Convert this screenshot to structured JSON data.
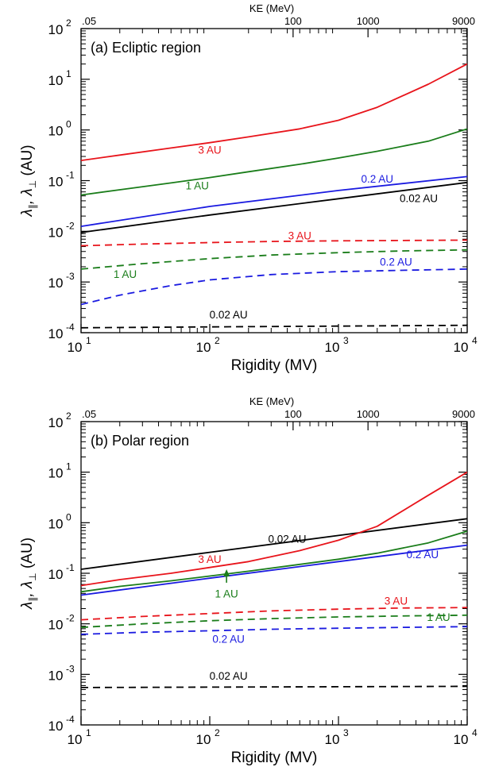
{
  "chart_data": [
    {
      "type": "line",
      "title": "(a) Ecliptic region",
      "xlabel": "Rigidity (MV)",
      "ylabel_parts": [
        "λ",
        "∥",
        ", λ",
        "⊥",
        " (AU)"
      ],
      "top_axis_label": "KE (MeV)",
      "xscale": "log",
      "yscale": "log",
      "xlim": [
        10,
        10000
      ],
      "ylim": [
        0.0001,
        100
      ],
      "x_ticks": [
        {
          "value": 10,
          "base": "10",
          "exp": "1"
        },
        {
          "value": 100,
          "base": "10",
          "exp": "2"
        },
        {
          "value": 1000,
          "base": "10",
          "exp": "3"
        },
        {
          "value": 10000,
          "base": "10",
          "exp": "4"
        }
      ],
      "y_ticks": [
        {
          "value": 0.0001,
          "base": "10",
          "exp": "-4"
        },
        {
          "value": 0.001,
          "base": "10",
          "exp": "-3"
        },
        {
          "value": 0.01,
          "base": "10",
          "exp": "-2"
        },
        {
          "value": 0.1,
          "base": "10",
          "exp": "-1"
        },
        {
          "value": 1,
          "base": "10",
          "exp": "0"
        },
        {
          "value": 10,
          "base": "10",
          "exp": "1"
        },
        {
          "value": 100,
          "base": "10",
          "exp": "2"
        }
      ],
      "top_ticks": [
        {
          "label": ".05",
          "rigidity": 10
        },
        {
          "label": "100",
          "rigidity": 444
        },
        {
          "label": "1000",
          "rigidity": 1696
        },
        {
          "label": "9000",
          "rigidity": 9930
        }
      ],
      "series": [
        {
          "name": "3 AU",
          "kind": "parallel",
          "color": "#e8141b",
          "dash": false,
          "x": [
            10,
            20,
            50,
            100,
            200,
            500,
            1000,
            2000,
            5000,
            10000
          ],
          "y": [
            0.25,
            0.32,
            0.44,
            0.56,
            0.73,
            1.05,
            1.55,
            2.8,
            8.0,
            20
          ]
        },
        {
          "name": "1 AU",
          "kind": "parallel",
          "color": "#1a7d1a",
          "dash": false,
          "x": [
            10,
            20,
            50,
            100,
            200,
            500,
            1000,
            2000,
            5000,
            10000
          ],
          "y": [
            0.052,
            0.066,
            0.09,
            0.115,
            0.15,
            0.21,
            0.28,
            0.38,
            0.6,
            1.05
          ]
        },
        {
          "name": "0.2 AU",
          "kind": "parallel",
          "color": "#1a1ae0",
          "dash": false,
          "x": [
            10,
            100,
            1000,
            10000
          ],
          "y": [
            0.0125,
            0.031,
            0.064,
            0.12
          ]
        },
        {
          "name": "0.02 AU",
          "kind": "parallel",
          "color": "#000000",
          "dash": false,
          "x": [
            10,
            100,
            1000,
            10000
          ],
          "y": [
            0.0095,
            0.021,
            0.044,
            0.092
          ]
        },
        {
          "name": "3 AU",
          "kind": "perpendicular",
          "color": "#e8141b",
          "dash": true,
          "x": [
            10,
            30,
            100,
            300,
            1000,
            3000,
            10000
          ],
          "y": [
            0.0052,
            0.0056,
            0.006,
            0.0063,
            0.0065,
            0.0066,
            0.0067
          ]
        },
        {
          "name": "1 AU",
          "kind": "perpendicular",
          "color": "#1a7d1a",
          "dash": true,
          "x": [
            10,
            30,
            100,
            300,
            1000,
            3000,
            10000
          ],
          "y": [
            0.0018,
            0.0023,
            0.0029,
            0.0034,
            0.0038,
            0.0041,
            0.0043
          ]
        },
        {
          "name": "0.2 AU",
          "kind": "perpendicular",
          "color": "#1a1ae0",
          "dash": true,
          "x": [
            10,
            20,
            50,
            100,
            300,
            1000,
            3000,
            10000
          ],
          "y": [
            0.00036,
            0.00055,
            0.00085,
            0.0011,
            0.0014,
            0.0016,
            0.0017,
            0.0018
          ]
        },
        {
          "name": "0.02 AU",
          "kind": "perpendicular",
          "color": "#000000",
          "dash": true,
          "x": [
            10,
            100,
            1000,
            10000
          ],
          "y": [
            0.000125,
            0.00013,
            0.000135,
            0.00014
          ]
        }
      ],
      "labels": [
        {
          "text": "3 AU",
          "color": "#e8141b",
          "x": 100,
          "y": 0.34
        },
        {
          "text": "1 AU",
          "color": "#1a7d1a",
          "x": 80,
          "y": 0.067
        },
        {
          "text": "0.2 AU",
          "color": "#1a1ae0",
          "x": 2000,
          "y": 0.092
        },
        {
          "text": "0.02 AU",
          "color": "#000000",
          "x": 4200,
          "y": 0.038
        },
        {
          "text": "3 AU",
          "color": "#e8141b",
          "x": 500,
          "y": 0.0069
        },
        {
          "text": "1 AU",
          "color": "#1a7d1a",
          "x": 22,
          "y": 0.0012
        },
        {
          "text": "0.2 AU",
          "color": "#1a1ae0",
          "x": 2800,
          "y": 0.0021
        },
        {
          "text": "0.02 AU",
          "color": "#000000",
          "x": 140,
          "y": 0.00019
        }
      ]
    },
    {
      "type": "line",
      "title": "(b) Polar region",
      "xlabel": "Rigidity (MV)",
      "ylabel_parts": [
        "λ",
        "∥",
        ", λ",
        "⊥",
        " (AU)"
      ],
      "top_axis_label": "KE (MeV)",
      "xscale": "log",
      "yscale": "log",
      "xlim": [
        10,
        10000
      ],
      "ylim": [
        0.0001,
        100
      ],
      "x_ticks": [
        {
          "value": 10,
          "base": "10",
          "exp": "1"
        },
        {
          "value": 100,
          "base": "10",
          "exp": "2"
        },
        {
          "value": 1000,
          "base": "10",
          "exp": "3"
        },
        {
          "value": 10000,
          "base": "10",
          "exp": "4"
        }
      ],
      "y_ticks": [
        {
          "value": 0.0001,
          "base": "10",
          "exp": "-4"
        },
        {
          "value": 0.001,
          "base": "10",
          "exp": "-3"
        },
        {
          "value": 0.01,
          "base": "10",
          "exp": "-2"
        },
        {
          "value": 0.1,
          "base": "10",
          "exp": "-1"
        },
        {
          "value": 1,
          "base": "10",
          "exp": "0"
        },
        {
          "value": 10,
          "base": "10",
          "exp": "1"
        },
        {
          "value": 100,
          "base": "10",
          "exp": "2"
        }
      ],
      "top_ticks": [
        {
          "label": ".05",
          "rigidity": 10
        },
        {
          "label": "100",
          "rigidity": 444
        },
        {
          "label": "1000",
          "rigidity": 1696
        },
        {
          "label": "9000",
          "rigidity": 9930
        }
      ],
      "series": [
        {
          "name": "0.02 AU",
          "kind": "parallel",
          "color": "#000000",
          "dash": false,
          "x": [
            10,
            100,
            1000,
            10000
          ],
          "y": [
            0.12,
            0.26,
            0.56,
            1.2
          ]
        },
        {
          "name": "3 AU",
          "kind": "parallel",
          "color": "#e8141b",
          "dash": false,
          "x": [
            10,
            20,
            50,
            100,
            200,
            500,
            1000,
            2000,
            5000,
            10000
          ],
          "y": [
            0.057,
            0.075,
            0.1,
            0.13,
            0.17,
            0.28,
            0.45,
            0.85,
            3.5,
            10
          ]
        },
        {
          "name": "1 AU",
          "kind": "parallel",
          "color": "#1a7d1a",
          "dash": false,
          "x": [
            10,
            20,
            50,
            100,
            200,
            500,
            1000,
            2000,
            5000,
            10000
          ],
          "y": [
            0.043,
            0.055,
            0.071,
            0.088,
            0.11,
            0.15,
            0.19,
            0.25,
            0.4,
            0.68
          ]
        },
        {
          "name": "0.2 AU",
          "kind": "parallel",
          "color": "#1a1ae0",
          "dash": false,
          "x": [
            10,
            100,
            1000,
            10000
          ],
          "y": [
            0.037,
            0.08,
            0.17,
            0.36
          ]
        },
        {
          "name": "3 AU",
          "kind": "perpendicular",
          "color": "#e8141b",
          "dash": true,
          "x": [
            10,
            30,
            100,
            300,
            1000,
            3000,
            10000
          ],
          "y": [
            0.012,
            0.014,
            0.016,
            0.018,
            0.0195,
            0.0205,
            0.021
          ]
        },
        {
          "name": "1 AU",
          "kind": "perpendicular",
          "color": "#1a7d1a",
          "dash": true,
          "x": [
            10,
            30,
            100,
            300,
            1000,
            3000,
            10000
          ],
          "y": [
            0.0085,
            0.01,
            0.0115,
            0.0127,
            0.0137,
            0.0143,
            0.0148
          ]
        },
        {
          "name": "0.2 AU",
          "kind": "perpendicular",
          "color": "#1a1ae0",
          "dash": true,
          "x": [
            10,
            30,
            100,
            300,
            1000,
            3000,
            10000
          ],
          "y": [
            0.0062,
            0.0068,
            0.0073,
            0.0078,
            0.0082,
            0.0085,
            0.0088
          ]
        },
        {
          "name": "0.02 AU",
          "kind": "perpendicular",
          "color": "#000000",
          "dash": true,
          "x": [
            10,
            100,
            1000,
            10000
          ],
          "y": [
            0.00055,
            0.00056,
            0.00057,
            0.00058
          ]
        }
      ],
      "labels": [
        {
          "text": "0.02 AU",
          "color": "#000000",
          "x": 400,
          "y": 0.4
        },
        {
          "text": "3 AU",
          "color": "#e8141b",
          "x": 100,
          "y": 0.16
        },
        {
          "text": "1 AU",
          "color": "#1a7d1a",
          "x": 135,
          "y": 0.033
        },
        {
          "text": "0.2 AU",
          "color": "#1a1ae0",
          "x": 4500,
          "y": 0.2
        },
        {
          "text": "3 AU",
          "color": "#e8141b",
          "x": 2800,
          "y": 0.024
        },
        {
          "text": "1 AU",
          "color": "#1a7d1a",
          "x": 6000,
          "y": 0.0115
        },
        {
          "text": "0.2 AU",
          "color": "#1a1ae0",
          "x": 140,
          "y": 0.0042
        },
        {
          "text": "0.02 AU",
          "color": "#000000",
          "x": 140,
          "y": 0.00078
        }
      ],
      "annotation_arrow": {
        "color": "#1a7d1a",
        "x": 135,
        "y_from": 0.065,
        "y_to": 0.12
      }
    }
  ]
}
